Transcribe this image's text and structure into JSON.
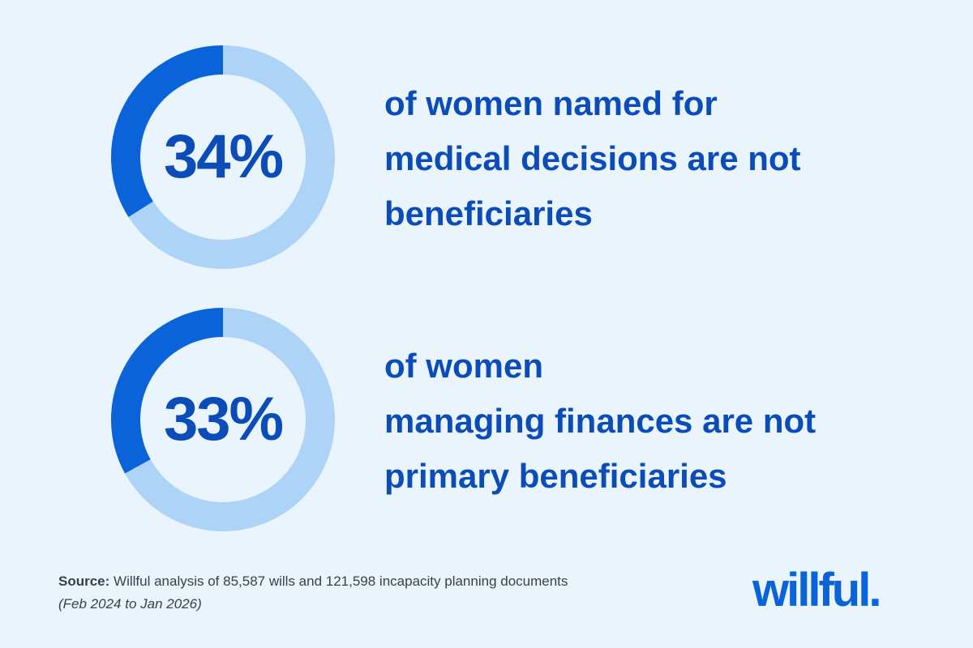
{
  "colors": {
    "background": "#eaf4fd",
    "highlight_arc": "#0a63d8",
    "remaining_arc": "#add3f7",
    "text": "#0b4cb8",
    "source_text": "#3b3f47",
    "logo": "#0a63d8"
  },
  "chart_data": [
    {
      "type": "pie",
      "style": "donut",
      "value_label": "34%",
      "values": [
        34,
        66
      ],
      "caption_lines": [
        "of women named for",
        "medical decisions are not",
        "beneficiaries"
      ]
    },
    {
      "type": "pie",
      "style": "donut",
      "value_label": "33%",
      "values": [
        33,
        67
      ],
      "caption_lines": [
        "of women",
        "managing finances are not",
        "primary beneficiaries"
      ]
    }
  ],
  "source": {
    "label": "Source:",
    "text": " Willful analysis of 85,587 wills and 121,598 incapacity planning documents",
    "period": "(Feb 2024 to Jan 2026)"
  },
  "logo": {
    "text": "willful."
  }
}
